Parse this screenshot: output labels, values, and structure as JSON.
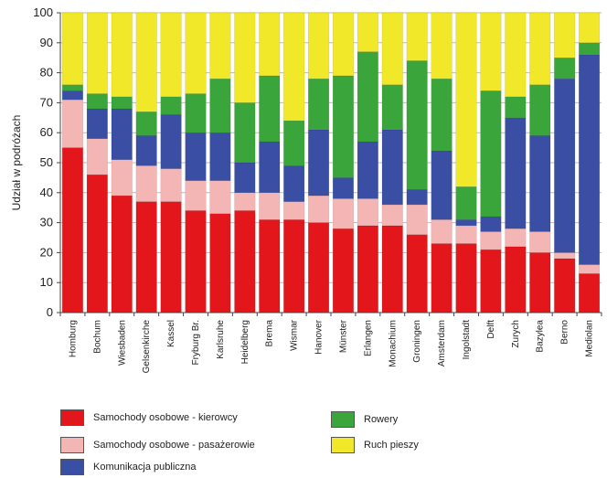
{
  "chart_data": {
    "type": "bar",
    "stacked": true,
    "title": "",
    "xlabel": "",
    "ylabel": "Udział w podróżach",
    "ylim": [
      0,
      100
    ],
    "yticks": [
      0,
      10,
      20,
      30,
      40,
      50,
      60,
      70,
      80,
      90,
      100
    ],
    "grid": "horizontal",
    "legend_position": "bottom",
    "categories": [
      "Homburg",
      "Bochum",
      "Wiesbaden",
      "Gelsenkirche",
      "Kassel",
      "Fryburg Br.",
      "Karlsruhe",
      "Heidelberg",
      "Brema",
      "Wismar",
      "Hanover",
      "Münster",
      "Erlangen",
      "Monachium",
      "Groningen",
      "Amsterdam",
      "Ingolstadt",
      "Delft",
      "Zurych",
      "Bazylea",
      "Berno",
      "Mediolan"
    ],
    "series": [
      {
        "name": "Samochody osobowe - kierowcy",
        "color": "#e2161b",
        "values": [
          55,
          46,
          39,
          37,
          37,
          34,
          33,
          34,
          31,
          31,
          30,
          28,
          29,
          29,
          26,
          23,
          23,
          21,
          22,
          20,
          18,
          13
        ]
      },
      {
        "name": "Samochody osobowe - pasażerowie",
        "color": "#f4b6b4",
        "values": [
          16,
          12,
          12,
          12,
          11,
          10,
          11,
          6,
          9,
          6,
          9,
          10,
          9,
          7,
          10,
          8,
          6,
          6,
          6,
          7,
          2,
          3
        ]
      },
      {
        "name": "Komunikacja publiczna",
        "color": "#3a4fa3",
        "values": [
          3,
          10,
          17,
          10,
          18,
          16,
          16,
          10,
          17,
          12,
          22,
          7,
          19,
          25,
          5,
          23,
          2,
          5,
          37,
          32,
          58,
          70
        ]
      },
      {
        "name": "Rowery",
        "color": "#3aa53a",
        "values": [
          2,
          5,
          4,
          8,
          6,
          13,
          18,
          20,
          22,
          15,
          17,
          34,
          30,
          15,
          43,
          24,
          11,
          42,
          7,
          17,
          7,
          4
        ]
      },
      {
        "name": "Ruch pieszy",
        "color": "#f2e82a",
        "values": [
          24,
          27,
          28,
          33,
          28,
          27,
          22,
          30,
          21,
          36,
          22,
          21,
          13,
          24,
          16,
          22,
          58,
          26,
          28,
          24,
          15,
          10
        ]
      }
    ]
  }
}
